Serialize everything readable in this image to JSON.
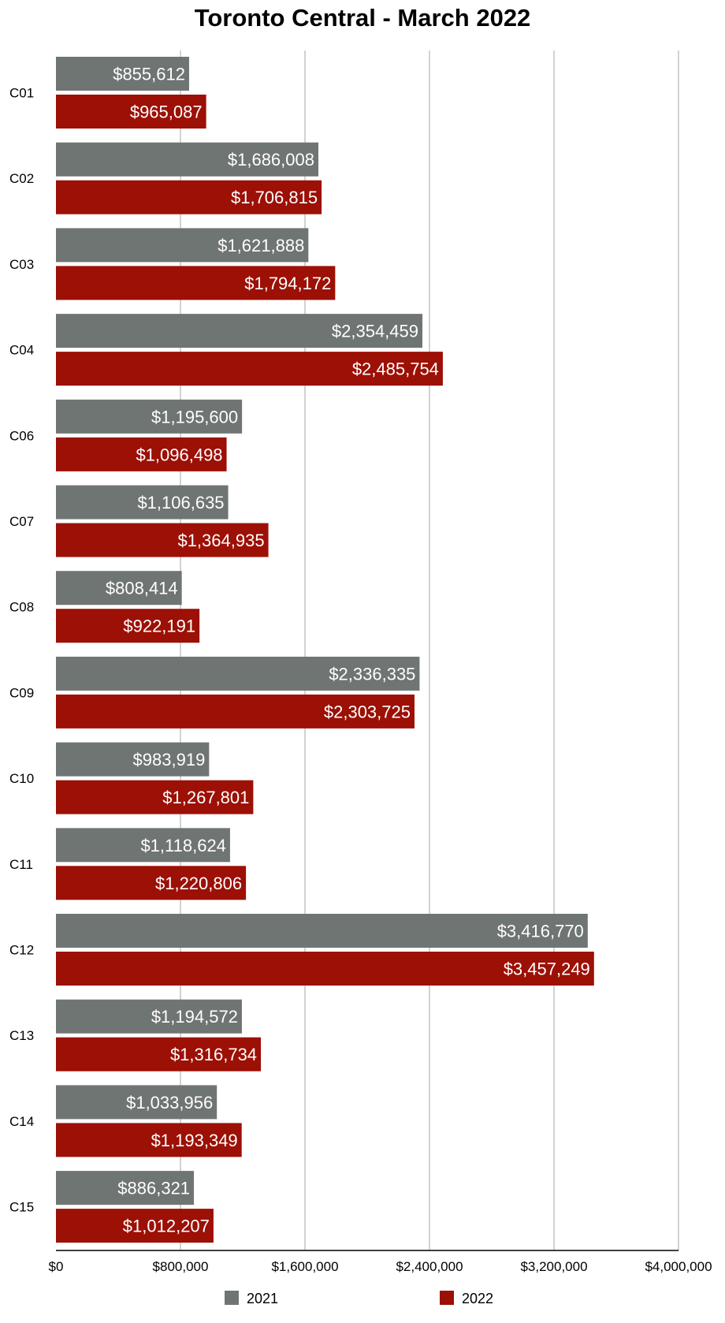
{
  "chart_data": {
    "type": "bar",
    "orientation": "horizontal",
    "title": "Toronto Central - March 2022",
    "xlabel": "",
    "ylabel": "",
    "categories": [
      "C01",
      "C02",
      "C03",
      "C04",
      "C06",
      "C07",
      "C08",
      "C09",
      "C10",
      "C11",
      "C12",
      "C13",
      "C14",
      "C15"
    ],
    "series": [
      {
        "name": "2021",
        "color": "#6f7573",
        "values": [
          855612,
          1686008,
          1621888,
          2354459,
          1195600,
          1106635,
          808414,
          2336335,
          983919,
          1118624,
          3416770,
          1194572,
          1033956,
          886321
        ],
        "labels": [
          "$855,612",
          "$1,686,008",
          "$1,621,888",
          "$2,354,459",
          "$1,195,600",
          "$1,106,635",
          "$808,414",
          "$2,336,335",
          "$983,919",
          "$1,118,624",
          "$3,416,770",
          "$1,194,572",
          "$1,033,956",
          "$886,321"
        ]
      },
      {
        "name": "2022",
        "color": "#9c1006",
        "values": [
          965087,
          1706815,
          1794172,
          2485754,
          1096498,
          1364935,
          922191,
          2303725,
          1267801,
          1220806,
          3457249,
          1316734,
          1193349,
          1012207
        ],
        "labels": [
          "$965,087",
          "$1,706,815",
          "$1,794,172",
          "$2,485,754",
          "$1,096,498",
          "$1,364,935",
          "$922,191",
          "$2,303,725",
          "$1,267,801",
          "$1,220,806",
          "$3,457,249",
          "$1,316,734",
          "$1,193,349",
          "$1,012,207"
        ]
      }
    ],
    "xlim": [
      0,
      4000000
    ],
    "ticks": [
      {
        "value": 0,
        "label": "$0"
      },
      {
        "value": 800000,
        "label": "$800,000"
      },
      {
        "value": 1600000,
        "label": "$1,600,000"
      },
      {
        "value": 2400000,
        "label": "$2,400,000"
      },
      {
        "value": 3200000,
        "label": "$3,200,000"
      },
      {
        "value": 4000000,
        "label": "$4,000,000"
      }
    ],
    "grid": true,
    "legend_position": "bottom"
  }
}
